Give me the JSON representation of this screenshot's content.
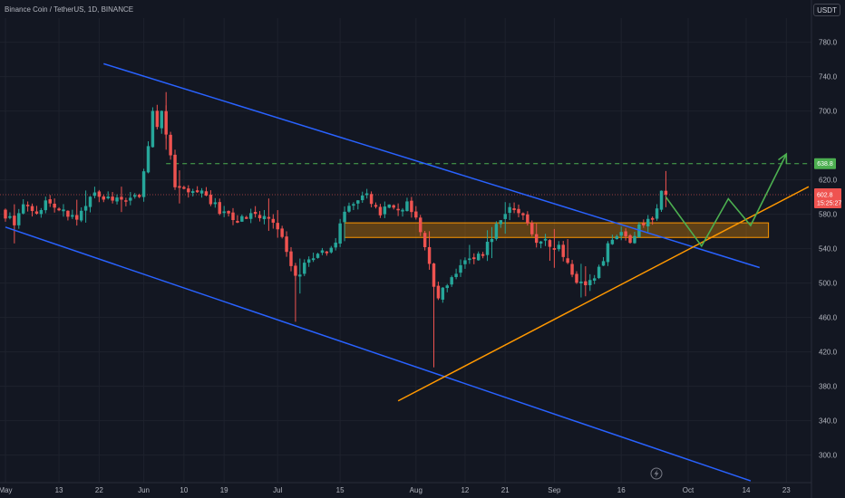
{
  "header": {
    "title": "Binance Coin / TetherUS, 1D, BINANCE",
    "unit": "USDT"
  },
  "icons": {
    "timezone": "lightning-icon"
  },
  "colors": {
    "background": "#131722",
    "up": "#26a69a",
    "down": "#ef5350",
    "channel": "#2962ff",
    "support": "#ff9800",
    "target": "#4caf50",
    "projection": "#4caf50",
    "zone": "#ff9800"
  },
  "chart_data": {
    "type": "candlestick",
    "title": "Binance Coin / TetherUS, 1D, BINANCE",
    "ylabel": "USDT",
    "ylim": [
      268,
      808
    ],
    "y_ticks": [
      300,
      340,
      380,
      420,
      460,
      500,
      540,
      580,
      620,
      700,
      740,
      780
    ],
    "y_tick_labels": [
      "300.0",
      "340.0",
      "380.0",
      "420.0",
      "460.0",
      "500.0",
      "540.0",
      "580.0",
      "620.0",
      "700.0",
      "740.0",
      "780.0"
    ],
    "x_range": [
      "2024-05-01",
      "2024-10-27"
    ],
    "x_ticks": [
      {
        "date": "2024-05-01",
        "label": "May"
      },
      {
        "date": "2024-05-13",
        "label": "13"
      },
      {
        "date": "2024-05-22",
        "label": "22"
      },
      {
        "date": "2024-06-01",
        "label": "Jun"
      },
      {
        "date": "2024-06-10",
        "label": "10"
      },
      {
        "date": "2024-06-19",
        "label": "19"
      },
      {
        "date": "2024-07-01",
        "label": "Jul"
      },
      {
        "date": "2024-07-15",
        "label": "15"
      },
      {
        "date": "2024-08-01",
        "label": "Aug"
      },
      {
        "date": "2024-08-12",
        "label": "12"
      },
      {
        "date": "2024-08-21",
        "label": "21"
      },
      {
        "date": "2024-09-01",
        "label": "Sep"
      },
      {
        "date": "2024-09-16",
        "label": "16"
      },
      {
        "date": "2024-10-01",
        "label": "Oct"
      },
      {
        "date": "2024-10-14",
        "label": "14"
      },
      {
        "date": "2024-10-23",
        "label": "23"
      }
    ],
    "price_anchors": [
      [
        "2024-05-01",
        580
      ],
      [
        "2024-05-02",
        572
      ],
      [
        "2024-05-03",
        565
      ],
      [
        "2024-05-04",
        585
      ],
      [
        "2024-05-06",
        590
      ],
      [
        "2024-05-08",
        582
      ],
      [
        "2024-05-10",
        592
      ],
      [
        "2024-05-13",
        588
      ],
      [
        "2024-05-16",
        575
      ],
      [
        "2024-05-18",
        580
      ],
      [
        "2024-05-20",
        605
      ],
      [
        "2024-05-22",
        598
      ],
      [
        "2024-05-26",
        600
      ],
      [
        "2024-05-29",
        595
      ],
      [
        "2024-05-31",
        605
      ],
      [
        "2024-06-02",
        660
      ],
      [
        "2024-06-03",
        700
      ],
      [
        "2024-06-04",
        680
      ],
      [
        "2024-06-05",
        705
      ],
      [
        "2024-06-06",
        670
      ],
      [
        "2024-06-07",
        650
      ],
      [
        "2024-06-08",
        610
      ],
      [
        "2024-06-10",
        605
      ],
      [
        "2024-06-12",
        600
      ],
      [
        "2024-06-15",
        605
      ],
      [
        "2024-06-17",
        588
      ],
      [
        "2024-06-19",
        582
      ],
      [
        "2024-06-22",
        570
      ],
      [
        "2024-06-25",
        580
      ],
      [
        "2024-06-28",
        578
      ],
      [
        "2024-06-30",
        572
      ],
      [
        "2024-07-02",
        550
      ],
      [
        "2024-07-04",
        515
      ],
      [
        "2024-07-05",
        505
      ],
      [
        "2024-07-07",
        520
      ],
      [
        "2024-07-09",
        530
      ],
      [
        "2024-07-12",
        540
      ],
      [
        "2024-07-14",
        550
      ],
      [
        "2024-07-16",
        585
      ],
      [
        "2024-07-18",
        590
      ],
      [
        "2024-07-20",
        600
      ],
      [
        "2024-07-22",
        595
      ],
      [
        "2024-07-24",
        580
      ],
      [
        "2024-07-26",
        590
      ],
      [
        "2024-07-28",
        582
      ],
      [
        "2024-07-30",
        592
      ],
      [
        "2024-08-01",
        575
      ],
      [
        "2024-08-03",
        545
      ],
      [
        "2024-08-05",
        500
      ],
      [
        "2024-08-06",
        480
      ],
      [
        "2024-08-07",
        495
      ],
      [
        "2024-08-09",
        505
      ],
      [
        "2024-08-12",
        525
      ],
      [
        "2024-08-15",
        530
      ],
      [
        "2024-08-17",
        545
      ],
      [
        "2024-08-19",
        565
      ],
      [
        "2024-08-21",
        585
      ],
      [
        "2024-08-23",
        590
      ],
      [
        "2024-08-25",
        580
      ],
      [
        "2024-08-27",
        555
      ],
      [
        "2024-08-30",
        545
      ],
      [
        "2024-09-02",
        540
      ],
      [
        "2024-09-04",
        520
      ],
      [
        "2024-09-06",
        505
      ],
      [
        "2024-09-08",
        500
      ],
      [
        "2024-09-10",
        510
      ],
      [
        "2024-09-12",
        530
      ],
      [
        "2024-09-14",
        555
      ],
      [
        "2024-09-16",
        555
      ],
      [
        "2024-09-18",
        550
      ],
      [
        "2024-09-20",
        565
      ],
      [
        "2024-09-22",
        570
      ],
      [
        "2024-09-24",
        588
      ],
      [
        "2024-09-25",
        605
      ],
      [
        "2024-09-26",
        602.8
      ]
    ],
    "annotations": {
      "last_price": 602.8,
      "last_price_label": "602.8",
      "countdown_label": "15:25:27",
      "target_price": 638.8,
      "target_label": "638.8",
      "descending_channel": [
        {
          "start": [
            "2024-05-23",
            755
          ],
          "end": [
            "2024-10-17",
            518
          ]
        },
        {
          "start": [
            "2024-05-01",
            565
          ],
          "end": [
            "2024-10-15",
            270
          ]
        }
      ],
      "ascending_support": {
        "start": [
          "2024-07-28",
          363
        ],
        "end": [
          "2024-10-28",
          612
        ]
      },
      "resistance_zone": {
        "start": "2024-07-16",
        "end": "2024-10-19",
        "low": 553,
        "high": 570
      },
      "projection_path": [
        [
          "2024-09-26",
          600
        ],
        [
          "2024-10-04",
          543
        ],
        [
          "2024-10-10",
          598
        ],
        [
          "2024-10-15",
          567
        ],
        [
          "2024-10-23",
          650
        ]
      ]
    }
  }
}
